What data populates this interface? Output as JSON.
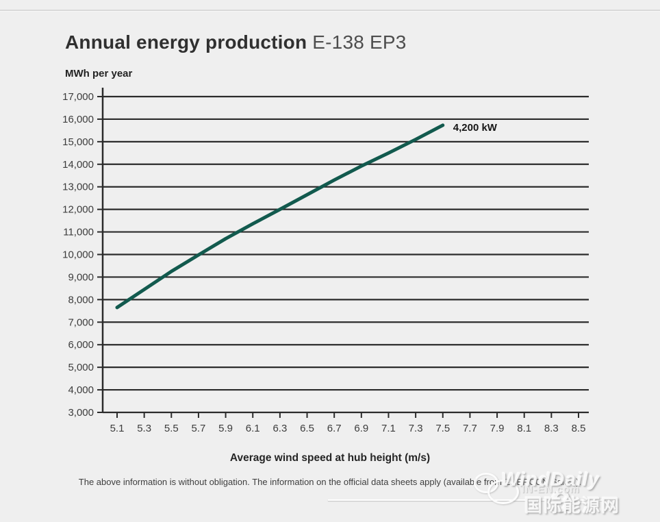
{
  "page": {
    "title_bold": "Annual energy production",
    "title_light": "E-138 EP3",
    "y_axis_title": "MWh per year",
    "x_axis_title": "Average wind speed at hub height (m/s)",
    "disclaimer": "The above information is without obligation. The information on the official data sheets apply (available from ENERCON Sales.).",
    "annotation": "4,200 kW"
  },
  "watermark": {
    "name": "WindDaily",
    "site": "IN-EN.com",
    "site_cn": "国际能源网",
    "logo": "speech-bubbles-and-e-swoosh"
  },
  "colors": {
    "background": "#efefef",
    "grid": "#2b2b2b",
    "curve": "#125a4e",
    "title_text": "#303030",
    "tick_text": "#3c3c3c"
  },
  "chart_data": {
    "type": "line",
    "title": "Annual energy production E-138 EP3",
    "xlabel": "Average wind speed at hub height (m/s)",
    "ylabel": "MWh per year",
    "grid": "horizontal",
    "legend_position": "inline-annotation",
    "xlim": [
      5.0,
      8.58
    ],
    "ylim": [
      3000,
      17000
    ],
    "x_ticks": [
      5.1,
      5.3,
      5.5,
      5.7,
      5.9,
      6.1,
      6.3,
      6.5,
      6.7,
      6.9,
      7.1,
      7.3,
      7.5,
      7.7,
      7.9,
      8.1,
      8.3,
      8.5
    ],
    "y_ticks": [
      3000,
      4000,
      5000,
      6000,
      7000,
      8000,
      9000,
      10000,
      11000,
      12000,
      13000,
      14000,
      15000,
      16000,
      17000
    ],
    "series": [
      {
        "name": "4,200 kW",
        "x": [
          5.1,
          5.3,
          5.5,
          5.7,
          5.9,
          6.1,
          6.3,
          6.5,
          6.7,
          6.9,
          7.1,
          7.3,
          7.5
        ],
        "y": [
          7650,
          8450,
          9250,
          9980,
          10700,
          11360,
          12000,
          12650,
          13300,
          13920,
          14500,
          15100,
          15730
        ]
      }
    ]
  }
}
